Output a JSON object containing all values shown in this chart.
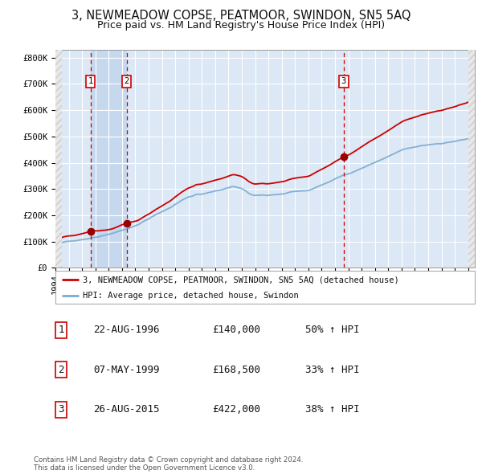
{
  "title": "3, NEWMEADOW COPSE, PEATMOOR, SWINDON, SN5 5AQ",
  "subtitle": "Price paid vs. HM Land Registry's House Price Index (HPI)",
  "ylabel_ticks": [
    "£0",
    "£100K",
    "£200K",
    "£300K",
    "£400K",
    "£500K",
    "£600K",
    "£700K",
    "£800K"
  ],
  "ytick_values": [
    0,
    100000,
    200000,
    300000,
    400000,
    500000,
    600000,
    700000,
    800000
  ],
  "ylim": [
    0,
    830000
  ],
  "xlim_start": 1994.0,
  "xlim_end": 2025.5,
  "hatch_left_end": 1994.5,
  "hatch_right_start": 2025.0,
  "sales": [
    {
      "num": 1,
      "date_dec": 1996.64,
      "price": 140000,
      "label": "22-AUG-1996",
      "price_str": "£140,000",
      "hpi_str": "50% ↑ HPI"
    },
    {
      "num": 2,
      "date_dec": 1999.35,
      "price": 168500,
      "label": "07-MAY-1999",
      "price_str": "£168,500",
      "hpi_str": "33% ↑ HPI"
    },
    {
      "num": 3,
      "date_dec": 2015.65,
      "price": 422000,
      "label": "26-AUG-2015",
      "price_str": "£422,000",
      "hpi_str": "38% ↑ HPI"
    }
  ],
  "legend_entries": [
    {
      "label": "3, NEWMEADOW COPSE, PEATMOOR, SWINDON, SN5 5AQ (detached house)",
      "color": "#cc0000"
    },
    {
      "label": "HPI: Average price, detached house, Swindon",
      "color": "#7aaad0"
    }
  ],
  "footnote": "Contains HM Land Registry data © Crown copyright and database right 2024.\nThis data is licensed under the Open Government Licence v3.0.",
  "bg_color": "#ffffff",
  "plot_bg_color": "#dce8f5",
  "grid_color": "#ffffff",
  "sale_marker_color": "#cc0000",
  "vline_color": "#cc0000",
  "span_color": "#c5d8ee",
  "title_fontsize": 10.5,
  "subtitle_fontsize": 9,
  "tick_fontsize": 7.5,
  "legend_fontsize": 7.5,
  "table_fontsize": 9
}
